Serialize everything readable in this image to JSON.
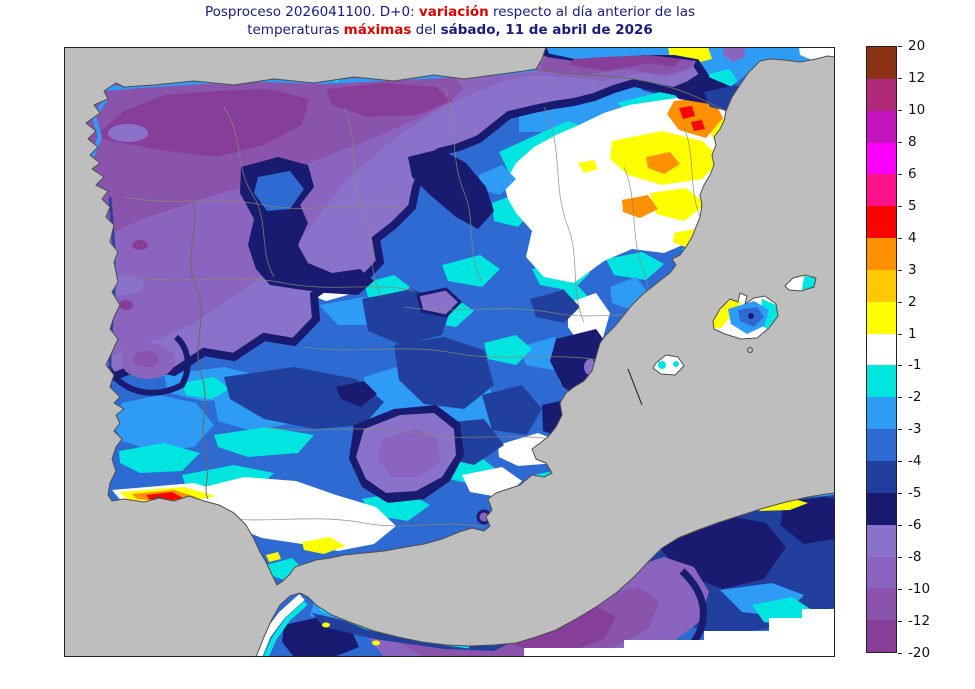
{
  "title": {
    "line1": [
      {
        "text": "Posproceso 2026041100. D+0: "
      },
      {
        "text": "variación"
      },
      {
        "text": " respecto al día anterior de las"
      }
    ],
    "line2": [
      {
        "text": "temperaturas "
      },
      {
        "text": "máximas"
      },
      {
        "text": " del "
      },
      {
        "text": "sábado, 11 de abril de 2026"
      }
    ]
  },
  "legend": {
    "tick_labels": [
      "20",
      "12",
      "10",
      "8",
      "6",
      "5",
      "4",
      "3",
      "2",
      "1",
      "-1",
      "-2",
      "-3",
      "-4",
      "-5",
      "-6",
      "-8",
      "-10",
      "-12",
      "-20"
    ],
    "band_colors": [
      "#8B3216",
      "#B12979",
      "#C215BE",
      "#FA00FA",
      "#FC1288",
      "#F80403",
      "#FF9000",
      "#FFC800",
      "#FFFF00",
      "#FFFFFF",
      "#00E5DF",
      "#2E9BF5",
      "#2D6BD3",
      "#21409E",
      "#191B70",
      "#8A72CA",
      "#8A64BE",
      "#8A53AC",
      "#873E99"
    ]
  },
  "palette": {
    "sea": "#BEBEBE",
    "frame": "#222222",
    "coast_line": "#4D4D4D",
    "boundary_line": "#8A8A7A",
    "title_navy": "#1A1A80",
    "title_red": "#DD0000",
    "label_color": "#111111"
  },
  "map": {
    "land_masses": [
      "Península Ibérica",
      "sur de Francia",
      "norte de África",
      "Islas Baleares"
    ],
    "features": [
      {
        "area": "Galicia, cornisa cantábrica y Pirineos",
        "anomaly_band": "-8 a -20"
      },
      {
        "area": "meseta norte y centro peninsular",
        "anomaly_band": "-2 a -6"
      },
      {
        "area": "valle del Ebro y Cataluña",
        "anomaly_band": "-1 a +4"
      },
      {
        "area": "costa del Algarve",
        "anomaly_band": "+1 a +5"
      },
      {
        "area": "litoral mediterráneo andaluz",
        "anomaly_band": "-1 a +2"
      },
      {
        "area": "sureste (interior de Valencia y Granada)",
        "anomaly_band": "-5 a -8"
      },
      {
        "area": "Baleares",
        "anomaly_band": "-1 a +2"
      },
      {
        "area": "norte de África (Rif)",
        "anomaly_band": "-8 a -20"
      }
    ]
  }
}
